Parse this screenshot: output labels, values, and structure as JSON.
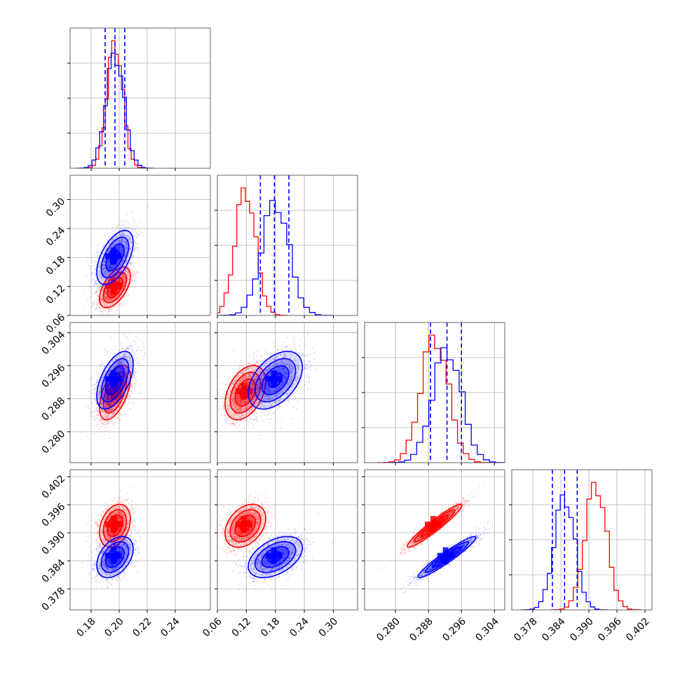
{
  "chart_data": {
    "type": "corner",
    "grid": true,
    "colors": {
      "series_a": "#0000ff",
      "series_b": "#ff0000"
    },
    "params": [
      {
        "range": [
          0.165,
          0.265
        ],
        "ticks": [
          "0.18",
          "0.20",
          "0.22",
          "0.24"
        ],
        "a": {
          "mean": 0.197,
          "sd": 0.0065,
          "quantiles": [
            0.19,
            0.197,
            0.204
          ]
        },
        "b": {
          "mean": 0.197,
          "sd": 0.0055
        }
      },
      {
        "range": [
          0.06,
          0.35
        ],
        "ticks": [
          "0.06",
          "0.12",
          "0.18",
          "0.24",
          "0.30"
        ],
        "a": {
          "mean": 0.18,
          "sd": 0.028,
          "quantiles": [
            0.149,
            0.178,
            0.208
          ]
        },
        "b": {
          "mean": 0.118,
          "sd": 0.021
        }
      },
      {
        "range": [
          0.2725,
          0.3065
        ],
        "ticks": [
          "0.280",
          "0.288",
          "0.296",
          "0.304"
        ],
        "a": {
          "mean": 0.2925,
          "sd": 0.0035,
          "quantiles": [
            0.2885,
            0.2925,
            0.296
          ]
        },
        "b": {
          "mean": 0.2895,
          "sd": 0.0033
        }
      },
      {
        "range": [
          0.3735,
          0.4035
        ],
        "ticks": [
          "0.378",
          "0.384",
          "0.390",
          "0.396",
          "0.402"
        ],
        "a": {
          "mean": 0.3848,
          "sd": 0.0022,
          "quantiles": [
            0.3822,
            0.3848,
            0.3875
          ]
        },
        "b": {
          "mean": 0.3915,
          "sd": 0.0023
        }
      }
    ],
    "correlations": {
      "a": {
        "0-1": 0.55,
        "0-2": 0.55,
        "0-3": 0.4,
        "1-2": 0.45,
        "1-3": 0.45,
        "2-3": 0.95
      },
      "b": {
        "0-1": 0.55,
        "0-2": 0.55,
        "0-3": 0.3,
        "1-2": 0.4,
        "1-3": 0.35,
        "2-3": 0.95
      }
    },
    "contour_levels_sigma": [
      0.5,
      1.0,
      1.5,
      2.0
    ],
    "scatter_points_per_series": 1800
  }
}
